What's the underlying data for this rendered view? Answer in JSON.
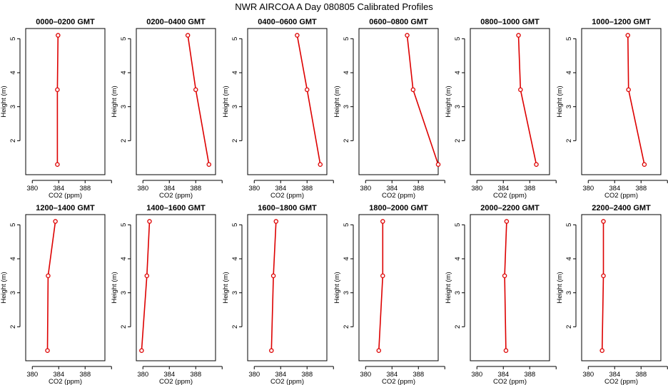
{
  "title": "NWR AIRCOA A  Day 080805  Calibrated Profiles",
  "chart_data": [
    {
      "type": "line",
      "title": "0000–0200 GMT",
      "xlabel": "CO2 (ppm)",
      "ylabel": "Height (m)",
      "xlim": [
        379,
        391
      ],
      "ylim": [
        1.0,
        5.3
      ],
      "xticks": [
        "380",
        "384",
        "388"
      ],
      "yticks": [
        "2",
        "3",
        "4",
        "5"
      ],
      "color": "#dd0000",
      "x": [
        383.9,
        383.8,
        383.8
      ],
      "y": [
        5.1,
        3.5,
        1.3
      ]
    },
    {
      "type": "line",
      "title": "0200–0400 GMT",
      "xlabel": "CO2 (ppm)",
      "ylabel": "Height (m)",
      "xlim": [
        379,
        391
      ],
      "ylim": [
        1.0,
        5.3
      ],
      "xticks": [
        "380",
        "384",
        "388"
      ],
      "yticks": [
        "2",
        "3",
        "4",
        "5"
      ],
      "color": "#dd0000",
      "x": [
        386.8,
        388.0,
        390.0
      ],
      "y": [
        5.1,
        3.5,
        1.3
      ]
    },
    {
      "type": "line",
      "title": "0400–0600 GMT",
      "xlabel": "CO2 (ppm)",
      "ylabel": "Height (m)",
      "xlim": [
        379,
        391
      ],
      "ylim": [
        1.0,
        5.3
      ],
      "xticks": [
        "380",
        "384",
        "388"
      ],
      "yticks": [
        "2",
        "3",
        "4",
        "5"
      ],
      "color": "#dd0000",
      "x": [
        386.5,
        388.0,
        390.0
      ],
      "y": [
        5.1,
        3.5,
        1.3
      ]
    },
    {
      "type": "line",
      "title": "0600–0800 GMT",
      "xlabel": "CO2 (ppm)",
      "ylabel": "Height (m)",
      "xlim": [
        379,
        391
      ],
      "ylim": [
        1.0,
        5.3
      ],
      "xticks": [
        "380",
        "384",
        "388"
      ],
      "yticks": [
        "2",
        "3",
        "4",
        "5"
      ],
      "color": "#dd0000",
      "x": [
        386.3,
        387.2,
        391.0
      ],
      "y": [
        5.1,
        3.5,
        1.3
      ]
    },
    {
      "type": "line",
      "title": "0800–1000 GMT",
      "xlabel": "CO2 (ppm)",
      "ylabel": "Height (m)",
      "xlim": [
        379,
        391
      ],
      "ylim": [
        1.0,
        5.3
      ],
      "xticks": [
        "380",
        "384",
        "388"
      ],
      "yticks": [
        "2",
        "3",
        "4",
        "5"
      ],
      "color": "#dd0000",
      "x": [
        386.3,
        386.6,
        389.0
      ],
      "y": [
        5.1,
        3.5,
        1.3
      ]
    },
    {
      "type": "line",
      "title": "1000–1200 GMT",
      "xlabel": "CO2 (ppm)",
      "ylabel": "Height (m)",
      "xlim": [
        379,
        391
      ],
      "ylim": [
        1.0,
        5.3
      ],
      "xticks": [
        "380",
        "384",
        "388"
      ],
      "yticks": [
        "2",
        "3",
        "4",
        "5"
      ],
      "color": "#dd0000",
      "x": [
        386.0,
        386.1,
        388.5
      ],
      "y": [
        5.1,
        3.5,
        1.3
      ]
    },
    {
      "type": "line",
      "title": "1200–1400 GMT",
      "xlabel": "CO2 (ppm)",
      "ylabel": "Height (m)",
      "xlim": [
        379,
        391
      ],
      "ylim": [
        1.0,
        5.3
      ],
      "xticks": [
        "380",
        "384",
        "388"
      ],
      "yticks": [
        "2",
        "3",
        "4",
        "5"
      ],
      "color": "#dd0000",
      "x": [
        383.5,
        382.4,
        382.3
      ],
      "y": [
        5.1,
        3.5,
        1.3
      ]
    },
    {
      "type": "line",
      "title": "1400–1600 GMT",
      "xlabel": "CO2 (ppm)",
      "ylabel": "Height (m)",
      "xlim": [
        379,
        391
      ],
      "ylim": [
        1.0,
        5.3
      ],
      "xticks": [
        "380",
        "384",
        "388"
      ],
      "yticks": [
        "2",
        "3",
        "4",
        "5"
      ],
      "color": "#dd0000",
      "x": [
        381.0,
        380.6,
        379.8
      ],
      "y": [
        5.1,
        3.5,
        1.3
      ]
    },
    {
      "type": "line",
      "title": "1600–1800 GMT",
      "xlabel": "CO2 (ppm)",
      "ylabel": "Height (m)",
      "xlim": [
        379,
        391
      ],
      "ylim": [
        1.0,
        5.3
      ],
      "xticks": [
        "380",
        "384",
        "388"
      ],
      "yticks": [
        "2",
        "3",
        "4",
        "5"
      ],
      "color": "#dd0000",
      "x": [
        383.3,
        382.9,
        382.6
      ],
      "y": [
        5.1,
        3.5,
        1.3
      ]
    },
    {
      "type": "line",
      "title": "1800–2000 GMT",
      "xlabel": "CO2 (ppm)",
      "ylabel": "Height (m)",
      "xlim": [
        379,
        391
      ],
      "ylim": [
        1.0,
        5.3
      ],
      "xticks": [
        "380",
        "384",
        "388"
      ],
      "yticks": [
        "2",
        "3",
        "4",
        "5"
      ],
      "color": "#dd0000",
      "x": [
        382.6,
        382.6,
        382.0
      ],
      "y": [
        5.1,
        3.5,
        1.3
      ]
    },
    {
      "type": "line",
      "title": "2000–2200 GMT",
      "xlabel": "CO2 (ppm)",
      "ylabel": "Height (m)",
      "xlim": [
        379,
        391
      ],
      "ylim": [
        1.0,
        5.3
      ],
      "xticks": [
        "380",
        "384",
        "388"
      ],
      "yticks": [
        "2",
        "3",
        "4",
        "5"
      ],
      "color": "#dd0000",
      "x": [
        384.5,
        384.2,
        384.4
      ],
      "y": [
        5.1,
        3.5,
        1.3
      ]
    },
    {
      "type": "line",
      "title": "2200–2400 GMT",
      "xlabel": "CO2 (ppm)",
      "ylabel": "Height (m)",
      "xlim": [
        379,
        391
      ],
      "ylim": [
        1.0,
        5.3
      ],
      "xticks": [
        "380",
        "384",
        "388"
      ],
      "yticks": [
        "2",
        "3",
        "4",
        "5"
      ],
      "color": "#dd0000",
      "x": [
        382.3,
        382.3,
        382.1
      ],
      "y": [
        5.1,
        3.5,
        1.3
      ]
    }
  ]
}
